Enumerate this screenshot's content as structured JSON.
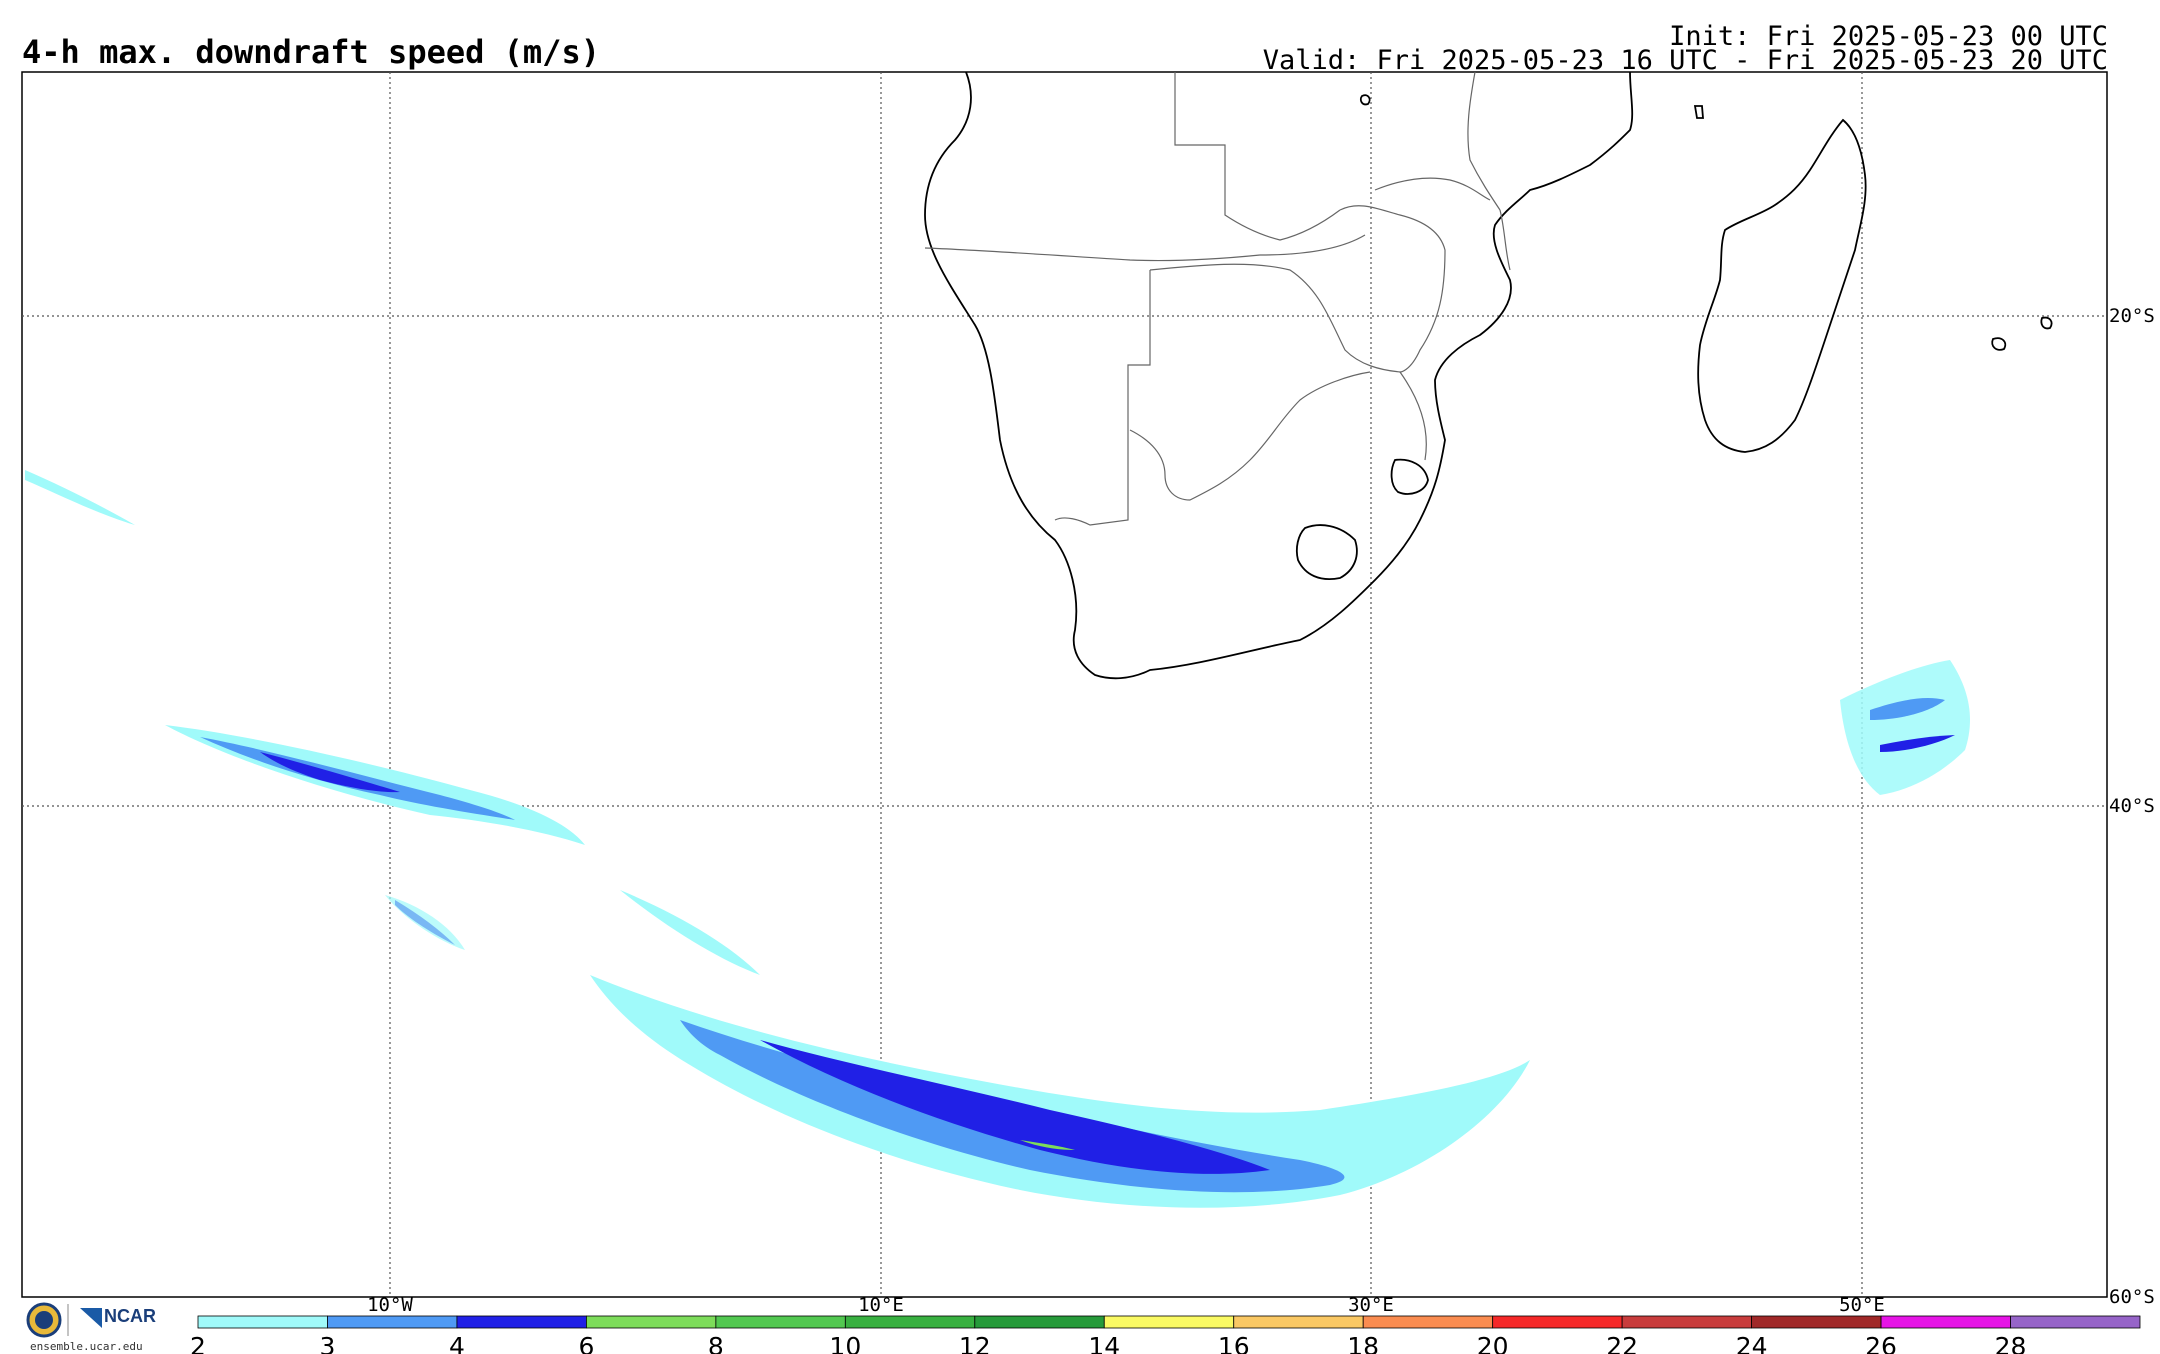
{
  "header": {
    "title": "4-h max. downdraft speed (m/s)",
    "init": "Init: Fri 2025-05-23 00 UTC",
    "valid": "Valid: Fri 2025-05-23 16 UTC - Fri 2025-05-23 20 UTC"
  },
  "map": {
    "lon_labels": [
      "10°W",
      "10°E",
      "30°E",
      "50°E"
    ],
    "lat_labels": [
      "20°S",
      "40°S",
      "60°S"
    ]
  },
  "colorbar": {
    "ticks": [
      "2",
      "3",
      "4",
      "6",
      "8",
      "10",
      "12",
      "14",
      "16",
      "18",
      "20",
      "22",
      "24",
      "26",
      "28"
    ],
    "colors": [
      "#a0fafa",
      "#4f9af4",
      "#2020e6",
      "#7ddc5a",
      "#52c850",
      "#38b040",
      "#269a3a",
      "#fafa64",
      "#fac864",
      "#fa8c50",
      "#f52828",
      "#c83c3c",
      "#a02828",
      "#e614e6",
      "#9664c8"
    ]
  },
  "logo": {
    "org": "NCAR",
    "url": "ensemble.ucar.edu"
  }
}
